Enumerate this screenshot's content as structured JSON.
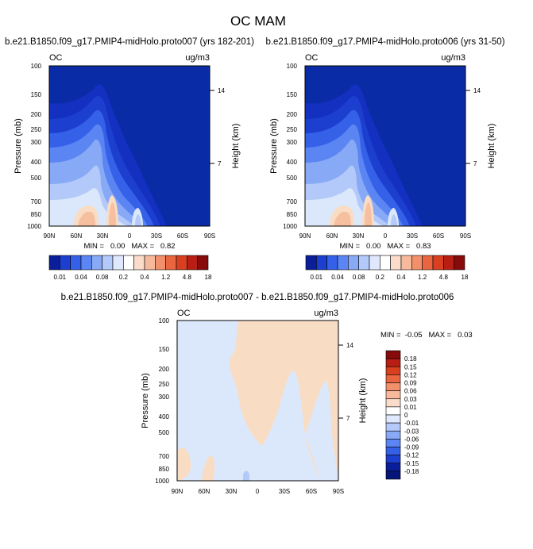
{
  "figure_title": "OC MAM",
  "chart_data": [
    {
      "type": "contour",
      "panel": "top-left",
      "title": "b.e21.B1850.f09_g17.PMIP4-midHolo.proto007 (yrs 182-201)",
      "variable": "OC",
      "units": "ug/m3",
      "ylabel": "Pressure (mb)",
      "ylabel_right": "Height (km)",
      "x_ticks": [
        "90N",
        "60N",
        "30N",
        "0",
        "30S",
        "60S",
        "90S"
      ],
      "y_ticks": [
        "100",
        "150",
        "200",
        "250",
        "300",
        "400",
        "500",
        "700",
        "850",
        "1000"
      ],
      "y_right_ticks": [
        "14",
        "7"
      ],
      "ylim": [
        1000,
        100
      ],
      "min_max_text": "MIN =   0.00   MAX =   0.82",
      "min": 0.0,
      "max": 0.82
    },
    {
      "type": "contour",
      "panel": "top-right",
      "title": "b.e21.B1850.f09_g17.PMIP4-midHolo.proto006 (yrs 31-50)",
      "variable": "OC",
      "units": "ug/m3",
      "ylabel": "Pressure (mb)",
      "ylabel_right": "Height (km)",
      "x_ticks": [
        "90N",
        "60N",
        "30N",
        "0",
        "30S",
        "60S",
        "90S"
      ],
      "y_ticks": [
        "100",
        "150",
        "200",
        "250",
        "300",
        "400",
        "500",
        "700",
        "850",
        "1000"
      ],
      "y_right_ticks": [
        "14",
        "7"
      ],
      "ylim": [
        1000,
        100
      ],
      "min_max_text": "MIN =   0.00   MAX =   0.83",
      "min": 0.0,
      "max": 0.83
    },
    {
      "type": "contour",
      "panel": "bottom-difference",
      "title": "b.e21.B1850.f09_g17.PMIP4-midHolo.proto007 - b.e21.B1850.f09_g17.PMIP4-midHolo.proto006",
      "variable": "OC",
      "units": "ug/m3",
      "ylabel": "Pressure (mb)",
      "ylabel_right": "Height (km)",
      "x_ticks": [
        "90N",
        "60N",
        "30N",
        "0",
        "30S",
        "60S",
        "90S"
      ],
      "y_ticks": [
        "100",
        "150",
        "200",
        "250",
        "300",
        "400",
        "500",
        "700",
        "850",
        "1000"
      ],
      "y_right_ticks": [
        "14",
        "7"
      ],
      "ylim": [
        1000,
        100
      ],
      "min_max_text": "MIN =  -0.05   MAX =   0.03",
      "min": -0.05,
      "max": 0.03
    }
  ],
  "colorbar_top": {
    "labels": [
      "0.01",
      "0.04",
      "0.08",
      "0.2",
      "0.4",
      "1.2",
      "4.8",
      "18"
    ],
    "colors": [
      "#0a1e9a",
      "#1d3fcf",
      "#3461e8",
      "#5a85f2",
      "#88a9f6",
      "#b3c9fa",
      "#dfe8fc",
      "#ffffff",
      "#fbdccb",
      "#f7b99c",
      "#f2906b",
      "#e96640",
      "#d8401f",
      "#b81e13",
      "#870b0b"
    ]
  },
  "colorbar_diff": {
    "labels": [
      "0.18",
      "0.15",
      "0.12",
      "0.09",
      "0.06",
      "0.03",
      "0.01",
      "0",
      "-0.01",
      "-0.03",
      "-0.06",
      "-0.09",
      "-0.12",
      "-0.15",
      "-0.18"
    ],
    "colors": [
      "#870b0b",
      "#b81e13",
      "#d8401f",
      "#e96640",
      "#f2906b",
      "#f7b99c",
      "#fbdccb",
      "#ffffff",
      "#dfe8fc",
      "#b3c9fa",
      "#88a9f6",
      "#5a85f2",
      "#3461e8",
      "#1d3fcf",
      "#0a1e9a",
      "#071578"
    ]
  },
  "colors": {
    "deep_blue": "#0a2ba6",
    "mid_blue": "#1f4fd8",
    "light_blue": "#dbe8fb",
    "peach": "#f9dcc4",
    "salmon": "#f5bfa0"
  }
}
